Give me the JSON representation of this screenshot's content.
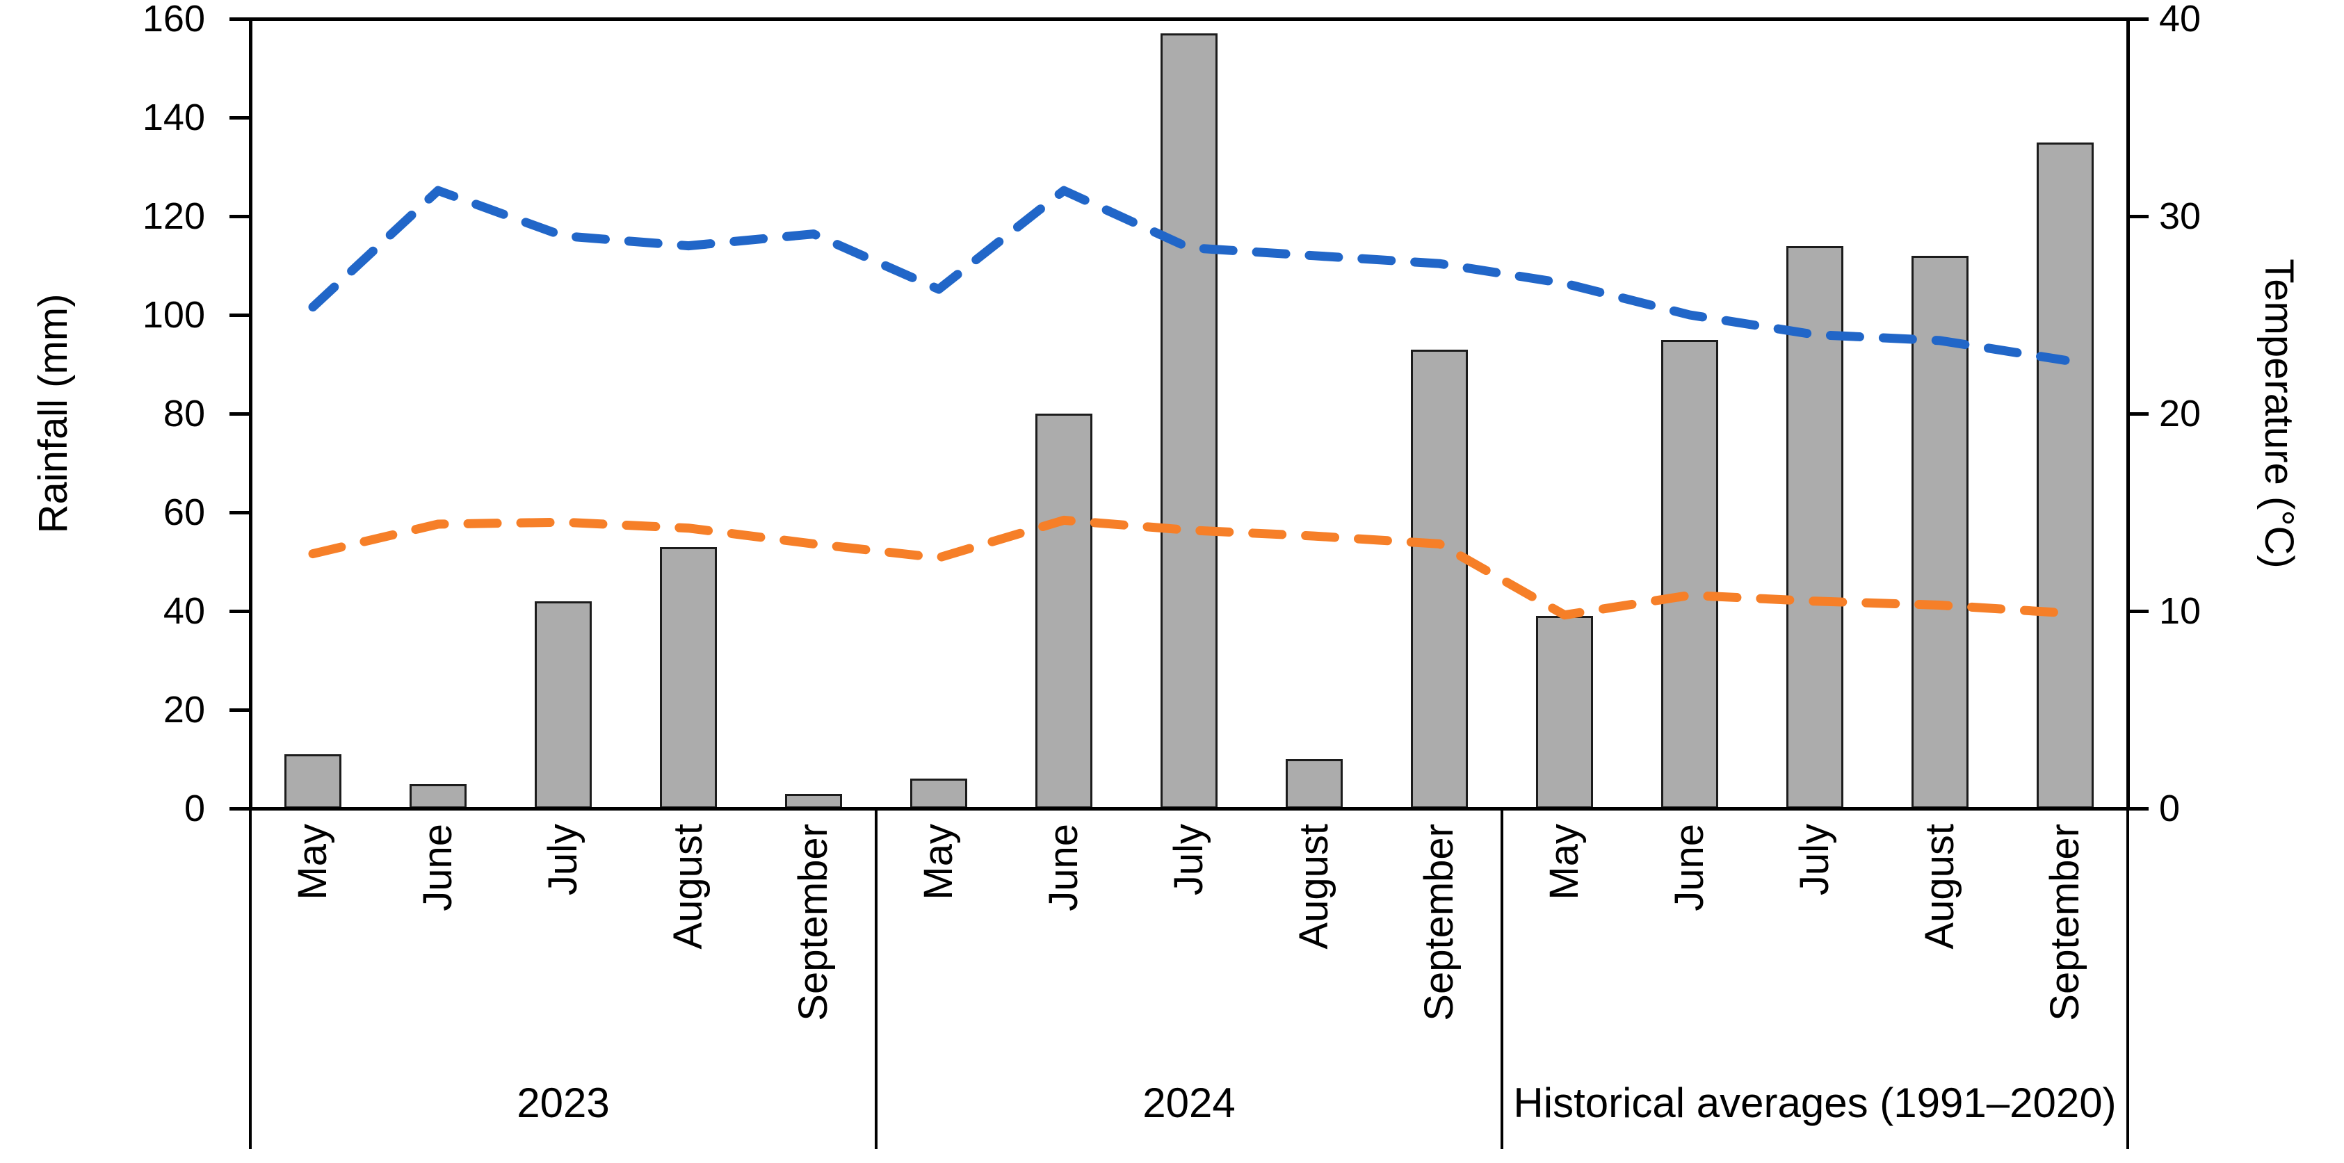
{
  "chart_data": {
    "type": "bar",
    "subtype": "bar-line-combo",
    "title": "",
    "legend": "none",
    "grid": "off",
    "left_axis": {
      "label": "Rainfall (mm)",
      "min": 0,
      "max": 160,
      "ticks": [
        "0",
        "20",
        "40",
        "60",
        "80",
        "100",
        "120",
        "140",
        "160"
      ]
    },
    "right_axis": {
      "label": "Temperature (°C)",
      "min": 0,
      "max": 40,
      "ticks": [
        "0",
        "10",
        "20",
        "30",
        "40"
      ]
    },
    "months": [
      "May",
      "June",
      "July",
      "August",
      "September"
    ],
    "groups": [
      {
        "label": "2023",
        "rainfall_mm": [
          11,
          5,
          42,
          53,
          3
        ],
        "blue_dashed_temp_c": [
          25.4,
          31.3,
          29.0,
          28.5,
          29.1
        ],
        "orange_dashed_temp_c": [
          12.9,
          14.4,
          14.5,
          14.2,
          13.4
        ]
      },
      {
        "label": "2024",
        "rainfall_mm": [
          6,
          80,
          157,
          10,
          93
        ],
        "blue_dashed_temp_c": [
          26.3,
          31.3,
          28.4,
          28.0,
          27.6
        ],
        "orange_dashed_temp_c": [
          12.7,
          14.6,
          14.1,
          13.8,
          13.4
        ]
      },
      {
        "label": "Historical averages (1991–2020)",
        "rainfall_mm": [
          39,
          95,
          114,
          112,
          135
        ],
        "blue_dashed_temp_c": [
          26.6,
          25.0,
          24.0,
          23.7,
          22.7
        ],
        "orange_dashed_temp_c": [
          9.8,
          10.8,
          10.5,
          10.3,
          9.9
        ]
      }
    ],
    "series_styles": {
      "bars": {
        "name": "rainfall-bars",
        "fill": "#ACACAC",
        "stroke": "#1C1C1C"
      },
      "blue_line": {
        "name": "blue-dashed-temperature-line",
        "color": "#2166C8",
        "style": "dashed"
      },
      "orange_line": {
        "name": "orange-dashed-temperature-line",
        "color": "#F67F28",
        "style": "dashed"
      }
    }
  }
}
